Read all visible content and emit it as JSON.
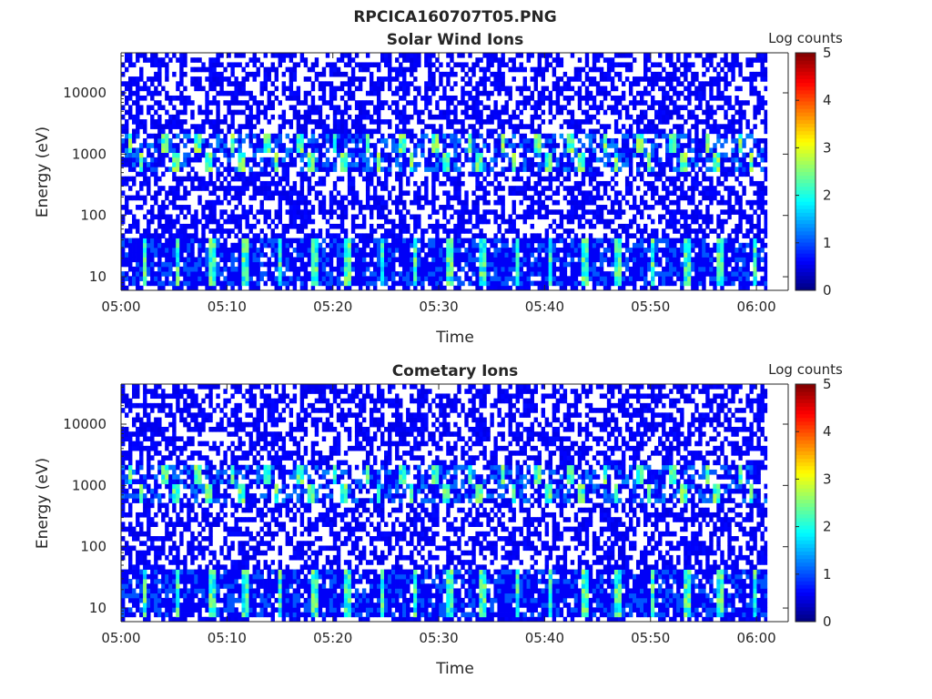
{
  "figure_title": "RPCICA160707T05.PNG",
  "chart_data": [
    {
      "type": "heatmap",
      "title": "Solar Wind Ions",
      "xlabel": "Time",
      "ylabel": "Energy (eV)",
      "y_scale": "log",
      "ylim": [
        6,
        45000
      ],
      "xlim": [
        "05:00",
        "06:03"
      ],
      "x_ticks": [
        "05:00",
        "05:10",
        "05:20",
        "05:30",
        "05:40",
        "05:50",
        "06:00"
      ],
      "y_ticks": [
        {
          "value": 10,
          "label": "10"
        },
        {
          "value": 100,
          "label": "100"
        },
        {
          "value": 1000,
          "label": "1000"
        },
        {
          "value": 10000,
          "label": "10000"
        }
      ],
      "colorbar": {
        "label": "Log counts",
        "range": [
          0,
          5
        ],
        "ticks": [
          "0",
          "1",
          "2",
          "3",
          "4",
          "5"
        ],
        "colormap": "jet"
      },
      "features": {
        "sweep_period_min": 3.2,
        "solar_wind_band_eV": [
          500,
          2000
        ],
        "peak_log_counts_solar_wind": 2.7,
        "low_energy_band_eV": [
          7,
          40
        ],
        "peak_log_counts_low_energy": 2.5,
        "background_log_counts": 0.2,
        "data_end": "06:01"
      }
    },
    {
      "type": "heatmap",
      "title": "Cometary Ions",
      "xlabel": "Time",
      "ylabel": "Energy (eV)",
      "y_scale": "log",
      "ylim": [
        6,
        45000
      ],
      "xlim": [
        "05:00",
        "06:03"
      ],
      "x_ticks": [
        "05:00",
        "05:10",
        "05:20",
        "05:30",
        "05:40",
        "05:50",
        "06:00"
      ],
      "y_ticks": [
        {
          "value": 10,
          "label": "10"
        },
        {
          "value": 100,
          "label": "100"
        },
        {
          "value": 1000,
          "label": "1000"
        },
        {
          "value": 10000,
          "label": "10000"
        }
      ],
      "colorbar": {
        "label": "Log counts",
        "range": [
          0,
          5
        ],
        "ticks": [
          "0",
          "1",
          "2",
          "3",
          "4",
          "5"
        ],
        "colormap": "jet"
      },
      "features": {
        "sweep_period_min": 3.2,
        "solar_wind_band_eV": [
          500,
          2000
        ],
        "peak_log_counts_solar_wind": 2.6,
        "low_energy_band_eV": [
          7,
          40
        ],
        "peak_log_counts_low_energy": 2.5,
        "background_log_counts": 0.2,
        "data_end": "06:01"
      }
    }
  ]
}
